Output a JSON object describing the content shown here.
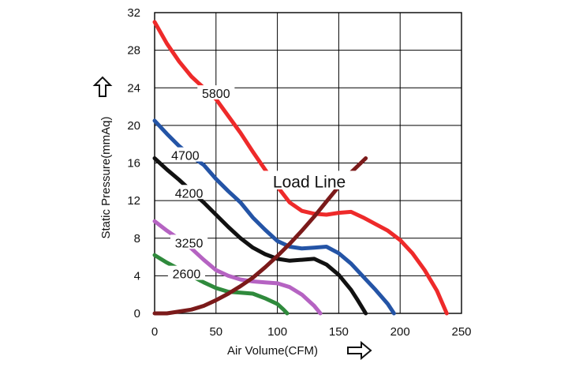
{
  "chart_data": {
    "type": "line",
    "xlabel": "Air Volume(CFM)",
    "ylabel": "Static Pressure(mmAq)",
    "xlim": [
      0,
      250
    ],
    "ylim": [
      0,
      32
    ],
    "x_ticks": [
      "0",
      "50",
      "100",
      "150",
      "200",
      "250"
    ],
    "y_ticks": [
      "0",
      "4",
      "8",
      "12",
      "16",
      "20",
      "24",
      "28",
      "32"
    ],
    "grid": true,
    "x_arrow_icon": "right-arrow-outline",
    "y_arrow_icon": "up-arrow-outline",
    "series": [
      {
        "name": "5800",
        "color": "#ee2a2a",
        "label_at": [
          50,
          23.3
        ],
        "points": [
          [
            0,
            31
          ],
          [
            10,
            28.7
          ],
          [
            20,
            26.8
          ],
          [
            30,
            25.2
          ],
          [
            40,
            24
          ],
          [
            50,
            22.8
          ],
          [
            60,
            21
          ],
          [
            70,
            19.2
          ],
          [
            80,
            17.2
          ],
          [
            90,
            15.3
          ],
          [
            100,
            13.5
          ],
          [
            110,
            11.8
          ],
          [
            120,
            10.9
          ],
          [
            130,
            10.6
          ],
          [
            140,
            10.5
          ],
          [
            150,
            10.7
          ],
          [
            160,
            10.8
          ],
          [
            170,
            10.2
          ],
          [
            180,
            9.5
          ],
          [
            190,
            8.8
          ],
          [
            200,
            7.8
          ],
          [
            210,
            6.4
          ],
          [
            220,
            4.6
          ],
          [
            230,
            2.4
          ],
          [
            238,
            0
          ]
        ]
      },
      {
        "name": "4700",
        "color": "#2454a6",
        "label_at": [
          25,
          16.7
        ],
        "points": [
          [
            0,
            20.5
          ],
          [
            10,
            19.1
          ],
          [
            20,
            17.8
          ],
          [
            30,
            16.7
          ],
          [
            40,
            15.8
          ],
          [
            50,
            14.3
          ],
          [
            60,
            13
          ],
          [
            70,
            11.8
          ],
          [
            80,
            10.2
          ],
          [
            90,
            8.9
          ],
          [
            100,
            7.7
          ],
          [
            110,
            7.1
          ],
          [
            120,
            6.9
          ],
          [
            130,
            7
          ],
          [
            140,
            7.1
          ],
          [
            150,
            6.4
          ],
          [
            160,
            5.3
          ],
          [
            170,
            3.9
          ],
          [
            180,
            2.5
          ],
          [
            190,
            1
          ],
          [
            195,
            0
          ]
        ]
      },
      {
        "name": "4200",
        "color": "#111111",
        "label_at": [
          28,
          12.7
        ],
        "points": [
          [
            0,
            16.5
          ],
          [
            10,
            15.3
          ],
          [
            20,
            14.2
          ],
          [
            30,
            13
          ],
          [
            40,
            11.8
          ],
          [
            50,
            10.5
          ],
          [
            60,
            9.2
          ],
          [
            70,
            8
          ],
          [
            80,
            7
          ],
          [
            90,
            6.3
          ],
          [
            100,
            5.8
          ],
          [
            110,
            5.6
          ],
          [
            120,
            5.7
          ],
          [
            130,
            5.8
          ],
          [
            140,
            5.2
          ],
          [
            150,
            4.1
          ],
          [
            160,
            2.5
          ],
          [
            165,
            1.5
          ],
          [
            172,
            0
          ]
        ]
      },
      {
        "name": "3250",
        "color": "#b563c2",
        "label_at": [
          28,
          7.4
        ],
        "points": [
          [
            0,
            9.8
          ],
          [
            10,
            8.8
          ],
          [
            20,
            7.9
          ],
          [
            30,
            6.9
          ],
          [
            40,
            5.7
          ],
          [
            50,
            4.6
          ],
          [
            60,
            4
          ],
          [
            70,
            3.6
          ],
          [
            80,
            3.4
          ],
          [
            90,
            3.3
          ],
          [
            100,
            3.2
          ],
          [
            110,
            2.8
          ],
          [
            120,
            2
          ],
          [
            130,
            0.8
          ],
          [
            135,
            0
          ]
        ]
      },
      {
        "name": "2600",
        "color": "#2f8a3c",
        "label_at": [
          26,
          4.1
        ],
        "points": [
          [
            0,
            6.2
          ],
          [
            10,
            5.4
          ],
          [
            20,
            4.7
          ],
          [
            30,
            4
          ],
          [
            40,
            3.3
          ],
          [
            50,
            2.7
          ],
          [
            60,
            2.3
          ],
          [
            70,
            2.2
          ],
          [
            80,
            2.1
          ],
          [
            90,
            1.6
          ],
          [
            100,
            1
          ],
          [
            105,
            0.4
          ],
          [
            108,
            0
          ]
        ]
      },
      {
        "name": "Load Line",
        "color": "#7b1a1a",
        "label_at": [
          126,
          13.9
        ],
        "points": [
          [
            0,
            0
          ],
          [
            10,
            0
          ],
          [
            20,
            0.2
          ],
          [
            30,
            0.4
          ],
          [
            40,
            0.8
          ],
          [
            50,
            1.4
          ],
          [
            60,
            2.1
          ],
          [
            70,
            2.9
          ],
          [
            80,
            3.8
          ],
          [
            90,
            4.9
          ],
          [
            100,
            6.1
          ],
          [
            110,
            7.4
          ],
          [
            120,
            8.8
          ],
          [
            130,
            10.3
          ],
          [
            140,
            11.9
          ],
          [
            150,
            13.5
          ],
          [
            160,
            15
          ],
          [
            172,
            16.5
          ]
        ]
      }
    ]
  }
}
